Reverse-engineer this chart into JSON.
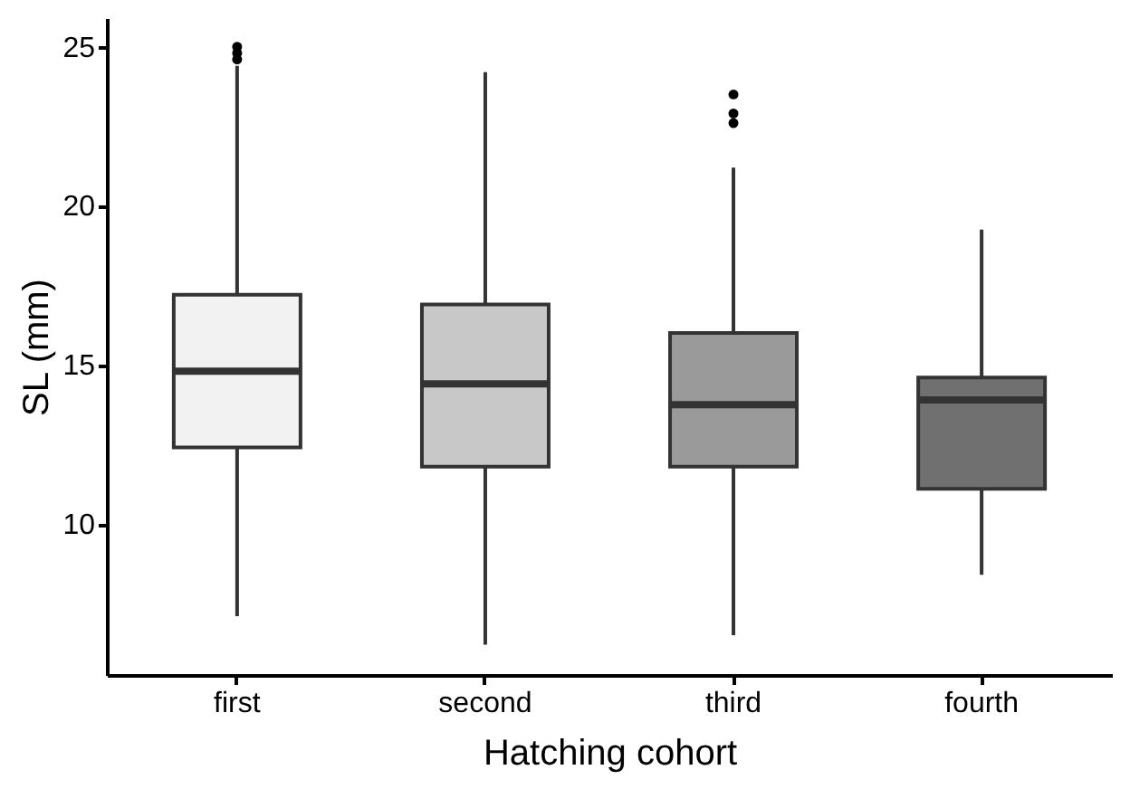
{
  "chart_data": {
    "type": "box",
    "xlabel": "Hatching cohort",
    "ylabel": "SL (mm)",
    "categories": [
      "first",
      "second",
      "third",
      "fourth"
    ],
    "colors": [
      "#f2f2f2",
      "#c8c8c8",
      "#9a9a9a",
      "#707070"
    ],
    "boxes": [
      {
        "low": 7.1,
        "q1": 12.4,
        "median": 14.8,
        "q3": 17.2,
        "high": 24.4,
        "outliers": [
          24.6,
          24.8,
          25.0
        ]
      },
      {
        "low": 6.2,
        "q1": 11.8,
        "median": 14.4,
        "q3": 16.9,
        "high": 24.2
      },
      {
        "low": 6.5,
        "q1": 11.8,
        "median": 13.75,
        "q3": 16.0,
        "high": 21.2,
        "outliers": [
          22.6,
          22.9,
          23.5
        ]
      },
      {
        "low": 8.4,
        "q1": 11.1,
        "median": 13.9,
        "q3": 14.6,
        "high": 19.25
      }
    ],
    "ylim": [
      5.25,
      25.9
    ],
    "yticks": [
      10,
      15,
      20,
      25
    ],
    "grid": false,
    "legend": false
  }
}
